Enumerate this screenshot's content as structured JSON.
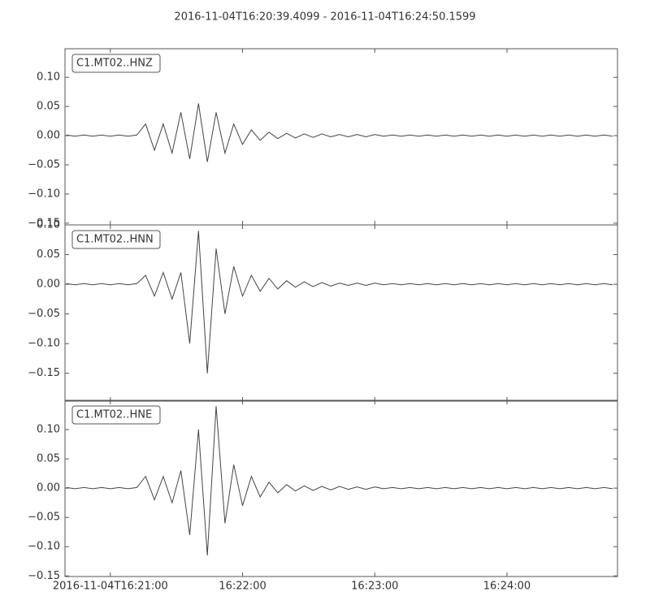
{
  "chart_data": {
    "type": "line",
    "title": "2016-11-04T16:20:39.4099  -  2016-11-04T16:24:50.1599",
    "color": "#444444",
    "xlim": [
      39.4099,
      290.1599
    ],
    "xticks": [
      {
        "value": 60,
        "label": "2016-11-04T16:21:00"
      },
      {
        "value": 120,
        "label": "16:22:00"
      },
      {
        "value": 180,
        "label": "16:23:00"
      },
      {
        "value": 240,
        "label": "16:24:00"
      }
    ],
    "x": [
      40,
      44,
      48,
      52,
      56,
      60,
      64,
      68,
      72,
      76,
      80,
      84,
      88,
      92,
      96,
      100,
      104,
      108,
      112,
      116,
      120,
      124,
      128,
      132,
      136,
      140,
      144,
      148,
      152,
      156,
      160,
      164,
      168,
      172,
      176,
      180,
      184,
      188,
      192,
      196,
      200,
      204,
      208,
      212,
      216,
      220,
      224,
      228,
      232,
      236,
      240,
      244,
      248,
      252,
      256,
      260,
      264,
      268,
      272,
      276,
      280,
      284,
      288
    ],
    "panels": [
      {
        "name": "C1.MT02..HNZ",
        "ylim": [
          -0.153,
          0.149
        ],
        "yticks": [
          {
            "value": -0.15,
            "label": "−0.15"
          },
          {
            "value": -0.1,
            "label": "−0.10"
          },
          {
            "value": -0.05,
            "label": "−0.05"
          },
          {
            "value": 0,
            "label": "0.00"
          },
          0.05,
          {
            "value": 0.1,
            "label": "0.10"
          }
        ],
        "values": [
          0.001,
          -0.001,
          0.001,
          -0.001,
          0.001,
          -0.001,
          0.001,
          -0.001,
          0.001,
          0.02,
          -0.025,
          0.02,
          -0.03,
          0.04,
          -0.04,
          0.055,
          -0.045,
          0.04,
          -0.03,
          0.02,
          -0.015,
          0.01,
          -0.008,
          0.006,
          -0.005,
          0.004,
          -0.004,
          0.003,
          -0.003,
          0.003,
          -0.002,
          0.002,
          -0.002,
          0.002,
          -0.002,
          0.002,
          -0.001,
          0.001,
          -0.001,
          0.001,
          -0.001,
          0.001,
          -0.001,
          0.001,
          -0.001,
          0.001,
          -0.001,
          0.001,
          -0.001,
          0.001,
          -0.001,
          0.001,
          -0.001,
          0.001,
          -0.001,
          0.001,
          -0.001,
          0.001,
          -0.001,
          0.001,
          -0.001,
          0.001,
          -0.001
        ]
      },
      {
        "name": "C1.MT02..HNN",
        "ylim": [
          -0.197,
          0.1
        ],
        "yticks": [
          {
            "value": -0.15,
            "label": "−0.15"
          },
          {
            "value": -0.1,
            "label": "−0.10"
          },
          {
            "value": -0.05,
            "label": "−0.05"
          },
          {
            "value": 0,
            "label": "0.00"
          },
          0.05,
          {
            "value": 0.1,
            "label": "0.10"
          }
        ],
        "values": [
          0.001,
          -0.001,
          0.001,
          -0.001,
          0.001,
          -0.001,
          0.001,
          -0.001,
          0.001,
          0.015,
          -0.02,
          0.02,
          -0.025,
          0.02,
          -0.1,
          0.09,
          -0.15,
          0.06,
          -0.05,
          0.03,
          -0.02,
          0.015,
          -0.012,
          0.01,
          -0.008,
          0.006,
          -0.005,
          0.004,
          -0.004,
          0.003,
          -0.003,
          0.002,
          -0.002,
          0.002,
          -0.002,
          0.002,
          -0.001,
          0.001,
          -0.001,
          0.001,
          -0.001,
          0.001,
          -0.001,
          0.001,
          -0.001,
          0.001,
          -0.001,
          0.001,
          -0.001,
          0.001,
          -0.001,
          0.001,
          -0.001,
          0.001,
          -0.001,
          0.001,
          -0.001,
          0.001,
          -0.001,
          0.001,
          -0.001,
          0.001,
          -0.001
        ]
      },
      {
        "name": "C1.MT02..HNE",
        "ylim": [
          -0.151,
          0.15
        ],
        "yticks": [
          {
            "value": -0.15,
            "label": "−0.15"
          },
          {
            "value": -0.1,
            "label": "−0.10"
          },
          {
            "value": -0.05,
            "label": "−0.05"
          },
          {
            "value": 0,
            "label": "0.00"
          },
          0.05,
          {
            "value": 0.1,
            "label": "0.10"
          }
        ],
        "values": [
          0.001,
          -0.001,
          0.001,
          -0.001,
          0.001,
          -0.001,
          0.001,
          -0.001,
          0.001,
          0.02,
          -0.02,
          0.02,
          -0.025,
          0.03,
          -0.08,
          0.1,
          -0.115,
          0.14,
          -0.06,
          0.04,
          -0.03,
          0.02,
          -0.015,
          0.01,
          -0.008,
          0.006,
          -0.005,
          0.004,
          -0.004,
          0.003,
          -0.003,
          0.003,
          -0.002,
          0.002,
          -0.002,
          0.002,
          -0.001,
          0.001,
          -0.001,
          0.001,
          -0.001,
          0.001,
          -0.001,
          0.001,
          -0.001,
          0.001,
          -0.001,
          0.001,
          -0.001,
          0.001,
          -0.001,
          0.001,
          -0.001,
          0.001,
          -0.001,
          0.001,
          -0.001,
          0.001,
          -0.001,
          0.001,
          -0.001,
          0.001,
          -0.001
        ]
      }
    ]
  }
}
